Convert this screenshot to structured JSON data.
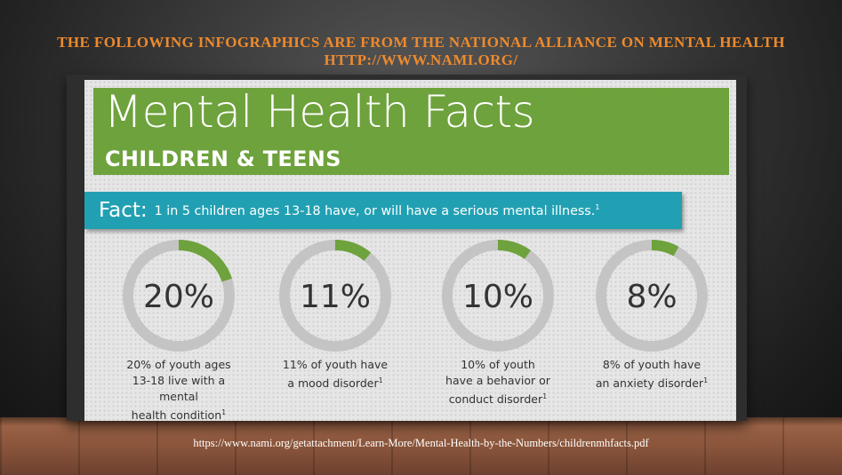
{
  "header": {
    "text": "The Following Infographics are from the National Alliance on Mental Health  http://www.nami.org/"
  },
  "infographic": {
    "title": "Mental Health Facts",
    "subtitle": "CHILDREN & TEENS",
    "fact_label": "Fact:",
    "fact_text": "1 in 5 children ages 13-18 have, or will have a serious mental illness.",
    "fact_footnote": "1",
    "stats": [
      {
        "percent_label": "20%",
        "value": 20,
        "description": "20% of youth ages\n13-18 live with a mental\nhealth condition",
        "footnote": "1"
      },
      {
        "percent_label": "11%",
        "value": 11,
        "description": "11% of youth have\na mood disorder",
        "footnote": "1"
      },
      {
        "percent_label": "10%",
        "value": 10,
        "description": "10% of youth\nhave a behavior or\nconduct disorder",
        "footnote": "1"
      },
      {
        "percent_label": "8%",
        "value": 8,
        "description": "8% of youth have\nan anxiety disorder",
        "footnote": "1"
      }
    ],
    "colors": {
      "banner_green": "#6ea23c",
      "fact_teal": "#22a0b3",
      "ring_gray": "#c4c4c4",
      "ring_green": "#6ea23c"
    }
  },
  "source": {
    "url": "https://www.nami.org/getattachment/Learn-More/Mental-Health-by-the-Numbers/childrenmhfacts.pdf"
  }
}
